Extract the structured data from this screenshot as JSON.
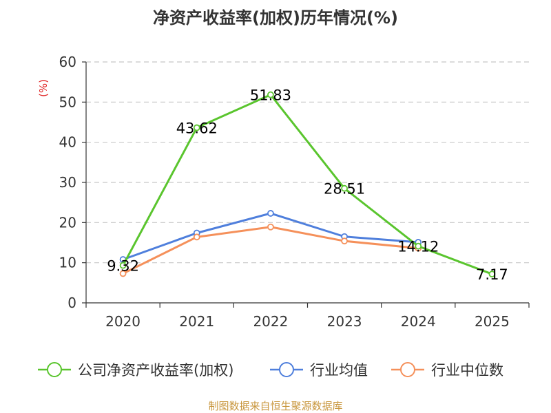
{
  "title": "净资产收益率(加权)历年情况(%)",
  "source": "制图数据来自恒生聚源数据库",
  "chart_data": {
    "type": "line",
    "title": "净资产收益率(加权)历年情况(%)",
    "ylabel": "(%)",
    "xlabel": "",
    "ylim": [
      0,
      60
    ],
    "yticks": [
      0,
      10,
      20,
      30,
      40,
      50,
      60
    ],
    "grid": true,
    "legend_position": "bottom",
    "categories": [
      "2020",
      "2021",
      "2022",
      "2023",
      "2024",
      "2025"
    ],
    "series": [
      {
        "name": "公司净资产收益率(加权)",
        "color": "#5ac52e",
        "values": [
          9.32,
          43.62,
          51.83,
          28.51,
          14.12,
          7.17
        ],
        "labels": [
          "9.32",
          "43.62",
          "51.83",
          "28.51",
          "14.12",
          "7.17"
        ]
      },
      {
        "name": "行业均值",
        "color": "#4f7fdc",
        "values": [
          10.8,
          17.4,
          22.3,
          16.5,
          15.1,
          null
        ]
      },
      {
        "name": "行业中位数",
        "color": "#f5905a",
        "values": [
          7.3,
          16.4,
          18.9,
          15.4,
          13.6,
          null
        ]
      }
    ]
  }
}
